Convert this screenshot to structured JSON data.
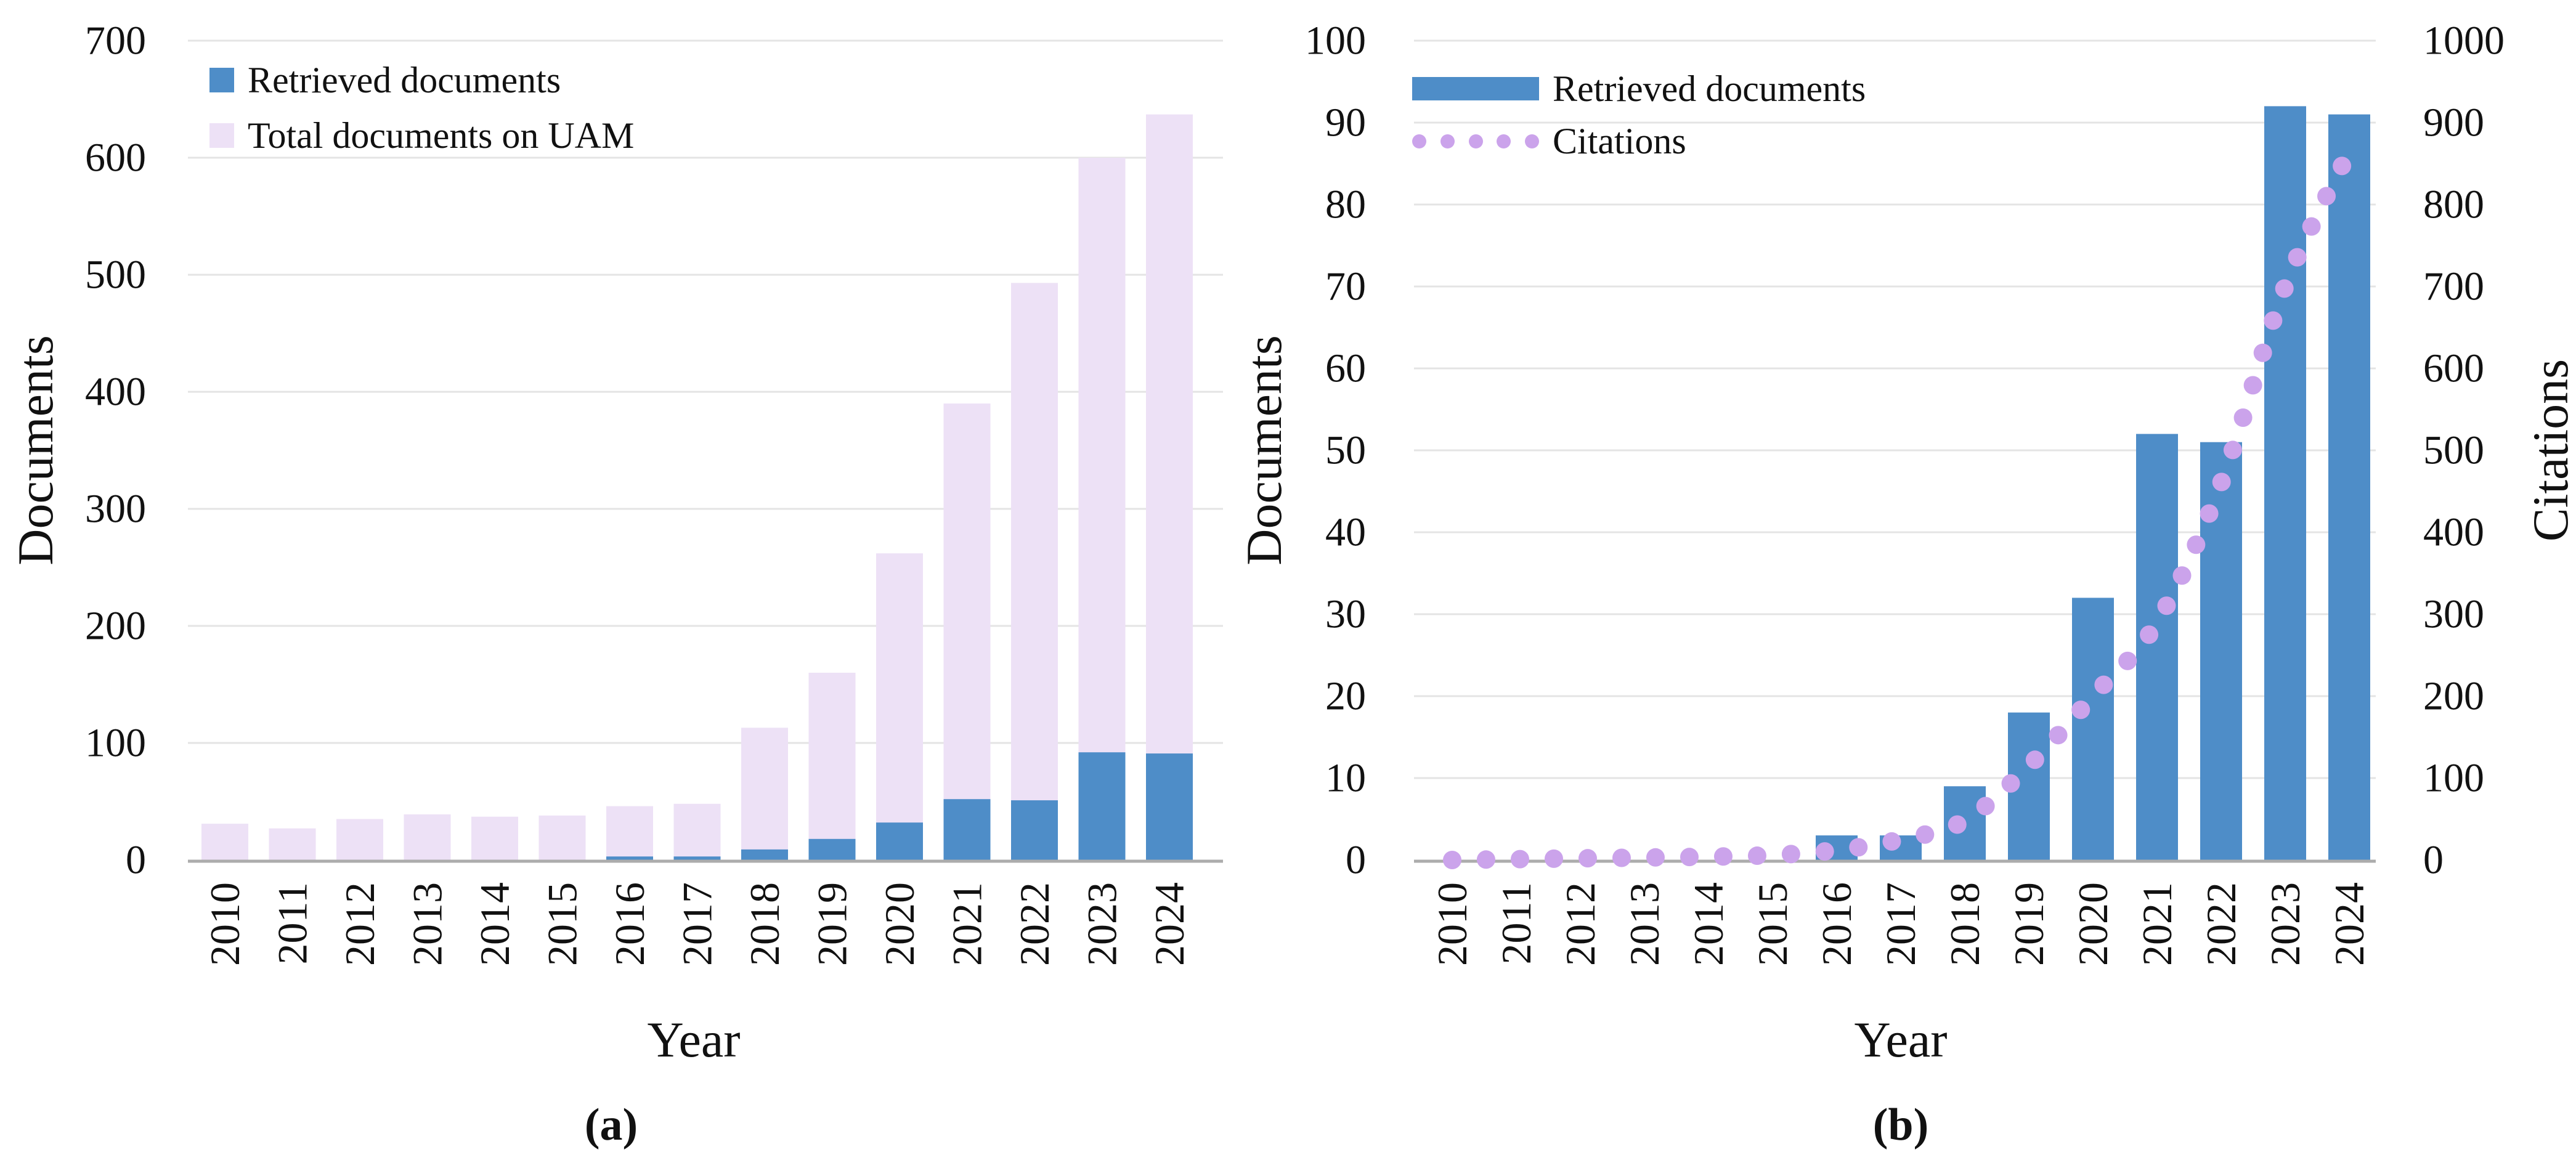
{
  "figure_background": "#ffffff",
  "colors": {
    "retrieved_bar": "#4E8DC8",
    "total_uam_bar": "#EDE1F6",
    "citations_dot": "#CBA3EB",
    "gridline": "#E4E4E4",
    "axis_baseline": "#ACACAC",
    "text": "#111111"
  },
  "chart_data": [
    {
      "type": "bar",
      "caption": "(a)",
      "xlabel": "Year",
      "ylabel": "Documents",
      "ylim": [
        0,
        700
      ],
      "yticks": [
        0,
        100,
        200,
        300,
        400,
        500,
        600,
        700
      ],
      "grid": true,
      "legend_position": "top-left",
      "bar_mode": "overlay",
      "categories": [
        "2010",
        "2011",
        "2012",
        "2013",
        "2014",
        "2015",
        "2016",
        "2017",
        "2018",
        "2019",
        "2020",
        "2021",
        "2022",
        "2023",
        "2024"
      ],
      "series": [
        {
          "name": "Retrieved documents",
          "color": "#4E8DC8",
          "values": [
            0,
            0,
            0,
            0,
            0,
            0,
            3,
            3,
            9,
            18,
            32,
            52,
            51,
            92,
            91
          ]
        },
        {
          "name": "Total documents on UAM",
          "color": "#EDE1F6",
          "values": [
            31,
            27,
            35,
            39,
            37,
            38,
            46,
            48,
            113,
            160,
            262,
            390,
            493,
            600,
            637
          ]
        }
      ]
    },
    {
      "type": "bar+line",
      "caption": "(b)",
      "xlabel": "Year",
      "ylabel_left": "Documents",
      "ylabel_right": "Citations",
      "ylim_left": [
        0,
        100
      ],
      "ylim_right": [
        0,
        1000
      ],
      "yticks_left": [
        0,
        10,
        20,
        30,
        40,
        50,
        60,
        70,
        80,
        90,
        100
      ],
      "yticks_right": [
        0,
        100,
        200,
        300,
        400,
        500,
        600,
        700,
        800,
        900,
        1000
      ],
      "grid": true,
      "legend_position": "top-left",
      "categories": [
        "2010",
        "2011",
        "2012",
        "2013",
        "2014",
        "2015",
        "2016",
        "2017",
        "2018",
        "2019",
        "2020",
        "2021",
        "2022",
        "2023",
        "2024"
      ],
      "series": [
        {
          "name": "Retrieved documents",
          "type": "bar",
          "axis": "left",
          "color": "#4E8DC8",
          "values": [
            0,
            0,
            0,
            0,
            0,
            0,
            3,
            3,
            9,
            18,
            32,
            52,
            51,
            92,
            91
          ]
        },
        {
          "name": "Citations",
          "type": "dotted-line",
          "axis": "right",
          "color": "#CBA3EB",
          "values": [
            0,
            1,
            2,
            3,
            4,
            6,
            12,
            25,
            48,
            115,
            200,
            290,
            460,
            700,
            865
          ]
        }
      ]
    }
  ]
}
